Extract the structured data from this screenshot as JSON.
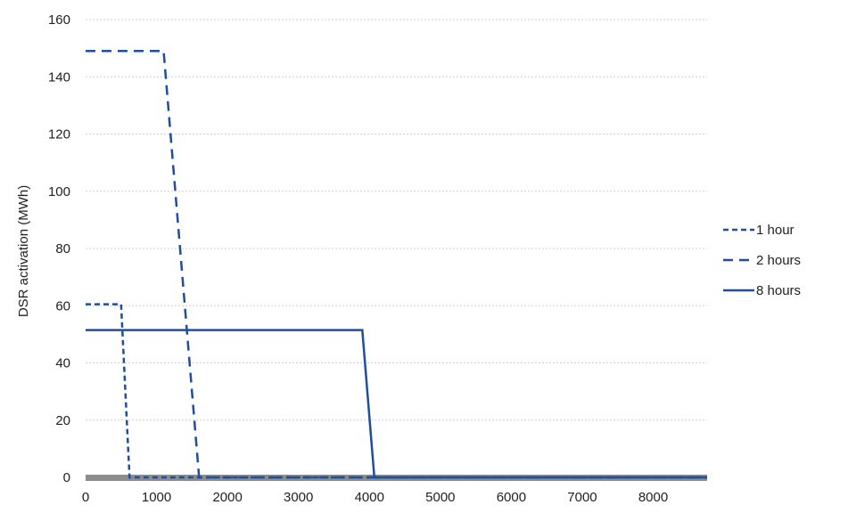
{
  "chart_data": {
    "type": "line",
    "title": "",
    "xlabel": "",
    "ylabel": "DSR activation (MWh)",
    "xlim": [
      0,
      8760
    ],
    "ylim": [
      0,
      160
    ],
    "x_ticks": [
      0,
      1000,
      2000,
      3000,
      4000,
      5000,
      6000,
      7000,
      8000
    ],
    "y_ticks": [
      0,
      20,
      40,
      60,
      80,
      100,
      120,
      140,
      160
    ],
    "grid": "horizontal",
    "legend_position": "right",
    "series": [
      {
        "name": "1 hour",
        "style": "short-dash",
        "color": "#1f4e9e",
        "points": [
          [
            0,
            60.5
          ],
          [
            500,
            60.5
          ],
          [
            620,
            0
          ],
          [
            8760,
            0
          ]
        ]
      },
      {
        "name": "2 hours",
        "style": "long-dash",
        "color": "#1f4e9e",
        "points": [
          [
            0,
            149
          ],
          [
            1100,
            149
          ],
          [
            1600,
            0
          ],
          [
            8760,
            0
          ]
        ]
      },
      {
        "name": "8 hours",
        "style": "solid",
        "color": "#1f4e9e",
        "points": [
          [
            0,
            51.5
          ],
          [
            3900,
            51.5
          ],
          [
            4070,
            0
          ],
          [
            8760,
            0
          ]
        ]
      }
    ]
  }
}
